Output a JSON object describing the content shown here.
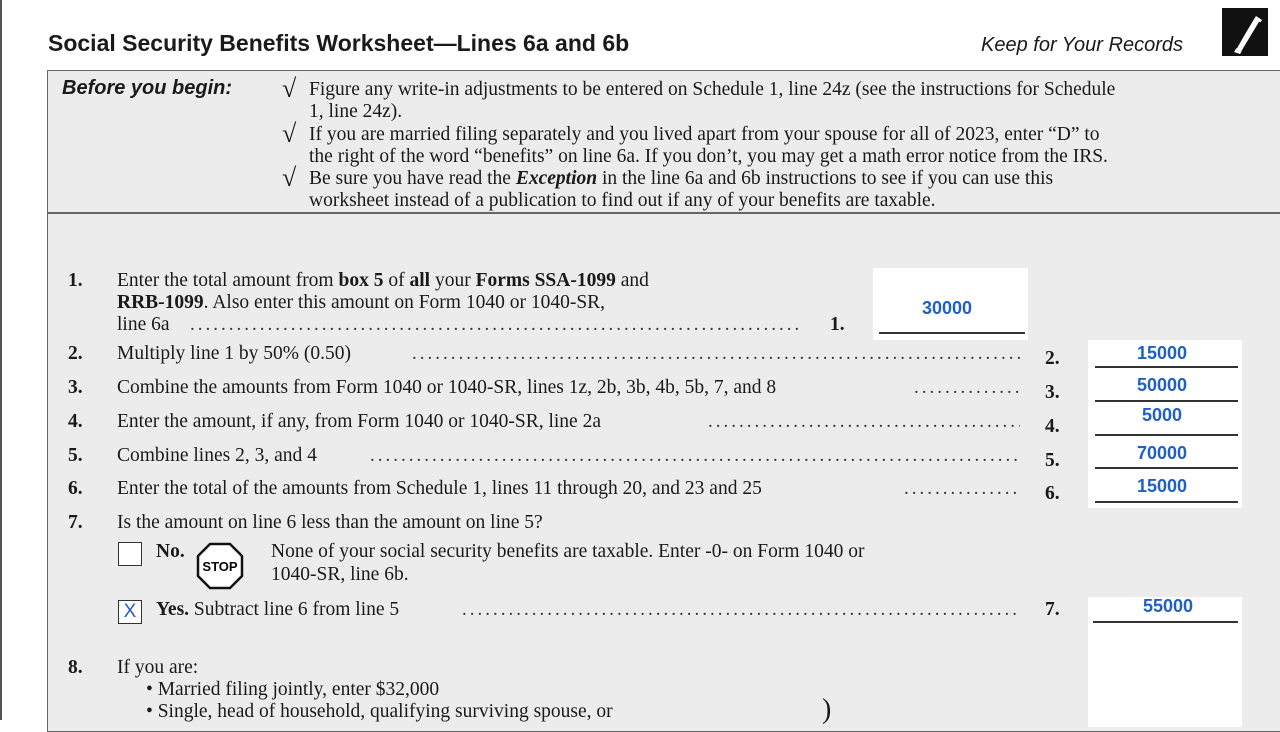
{
  "header": {
    "title": "Social Security Benefits Worksheet—Lines 6a and 6b",
    "keep": "Keep for Your Records",
    "icon": "pen-icon"
  },
  "before": {
    "label": "Before you begin:",
    "items": [
      "Figure any write-in adjustments to be entered on Schedule 1, line 24z (see the instructions for Schedule",
      "1, line 24z).",
      "If you are married filing separately and you lived apart from your spouse for all of 2023, enter “D” to",
      "the right of the word “benefits” on line 6a. If you don’t, you may get a math error notice from the IRS.",
      "Be sure you have read the ",
      "Exception",
      " in the line 6a and 6b instructions to see if you can use this",
      "worksheet instead of a publication to find out if any of your benefits are taxable."
    ]
  },
  "lines": {
    "l1": {
      "num": "1.",
      "a": "Enter the total amount from ",
      "b1": "box 5",
      "c": " of ",
      "b2": "all",
      "d": " your ",
      "b3": "Forms SSA-1099",
      "e": " and",
      "b4": "RRB-1099",
      "f": ". Also enter this amount on Form 1040 or 1040-SR,",
      "g": "line 6a",
      "ref": "1.",
      "value": "30000"
    },
    "l2": {
      "num": "2.",
      "text": "Multiply line 1 by 50% (0.50)",
      "ref": "2.",
      "value": "15000"
    },
    "l3": {
      "num": "3.",
      "text": "Combine the amounts from Form 1040 or 1040-SR, lines 1z, 2b, 3b, 4b, 5b, 7, and 8",
      "ref": "3.",
      "value": "50000"
    },
    "l4": {
      "num": "4.",
      "text": "Enter the amount, if any, from Form 1040 or 1040-SR, line 2a",
      "ref": "4.",
      "value": "5000"
    },
    "l5": {
      "num": "5.",
      "text": "Combine lines 2, 3, and 4",
      "ref": "5.",
      "value": "70000"
    },
    "l6": {
      "num": "6.",
      "text": "Enter the total of the amounts from Schedule 1, lines 11 through 20, and 23 and 25",
      "ref": "6.",
      "value": "15000"
    },
    "l7": {
      "num": "7.",
      "text": "Is the amount on line 6 less than the amount on line 5?",
      "no_label": "No.",
      "stop": "STOP",
      "no_text1": "None of your social security benefits are taxable. Enter -0- on Form 1040 or",
      "no_text2": "1040-SR, line 6b.",
      "no_checked": "",
      "yes_checked": "X",
      "yes_label": "Yes.",
      "yes_text": " Subtract line 6 from line 5",
      "ref": "7.",
      "value": "55000"
    },
    "l8": {
      "num": "8.",
      "text": "If you are:",
      "b1": "Married filing jointly, enter $32,000",
      "b2": "Single, head of household, qualifying surviving spouse, or"
    }
  }
}
